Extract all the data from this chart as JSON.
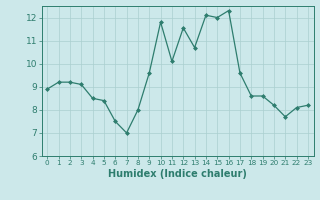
{
  "x": [
    0,
    1,
    2,
    3,
    4,
    5,
    6,
    7,
    8,
    9,
    10,
    11,
    12,
    13,
    14,
    15,
    16,
    17,
    18,
    19,
    20,
    21,
    22,
    23
  ],
  "y": [
    8.9,
    9.2,
    9.2,
    9.1,
    8.5,
    8.4,
    7.5,
    7.0,
    8.0,
    9.6,
    11.8,
    10.1,
    11.55,
    10.7,
    12.1,
    12.0,
    12.3,
    9.6,
    8.6,
    8.6,
    8.2,
    7.7,
    8.1,
    8.2
  ],
  "line_color": "#2e7d6e",
  "marker": "D",
  "marker_size": 2.0,
  "bg_color": "#cce8ea",
  "grid_color": "#aacfcf",
  "xlabel": "Humidex (Indice chaleur)",
  "ylim": [
    6,
    12.5
  ],
  "xlim": [
    -0.5,
    23.5
  ],
  "yticks": [
    6,
    7,
    8,
    9,
    10,
    11,
    12
  ],
  "xticks": [
    0,
    1,
    2,
    3,
    4,
    5,
    6,
    7,
    8,
    9,
    10,
    11,
    12,
    13,
    14,
    15,
    16,
    17,
    18,
    19,
    20,
    21,
    22,
    23
  ],
  "tick_color": "#2e7d6e",
  "label_color": "#2e7d6e",
  "xlabel_fontsize": 7.0,
  "ytick_fontsize": 6.5,
  "xtick_fontsize": 5.2,
  "spine_color": "#2e7d6e",
  "bottom_bar_color": "#4a9a8a"
}
